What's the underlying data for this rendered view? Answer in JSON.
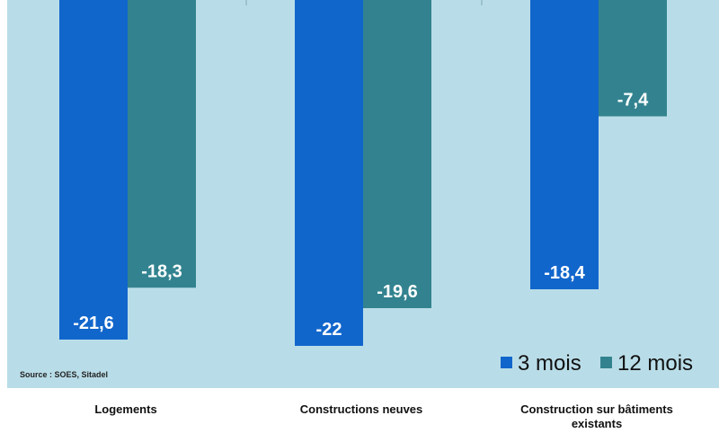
{
  "colors": {
    "plot_background": "#b9dde8",
    "series_3_mois": "#1166cc",
    "series_12_mois": "#32838f",
    "label_text": "#ffffff"
  },
  "source": "Source : SOES,  Sitadel",
  "chart_data": {
    "type": "bar",
    "title": "",
    "xlabel": "",
    "ylabel": "",
    "ylim": [
      -25,
      0
    ],
    "grid": false,
    "legend_position": "bottom-right",
    "categories": [
      "Logements",
      "Constructions neuves",
      "Construction sur bâtiments existants"
    ],
    "category_lines": [
      [
        "Logements"
      ],
      [
        "Constructions neuves"
      ],
      [
        "Construction sur bâtiments",
        "existants"
      ]
    ],
    "series": [
      {
        "name": "3 mois",
        "values": [
          -21.6,
          -22,
          -18.4
        ],
        "labels": [
          "-21,6",
          "-22",
          "-18,4"
        ]
      },
      {
        "name": "12 mois",
        "values": [
          -18.3,
          -19.6,
          -7.4
        ],
        "labels": [
          "-18,3",
          "-19,6",
          "-7,4"
        ]
      }
    ]
  }
}
